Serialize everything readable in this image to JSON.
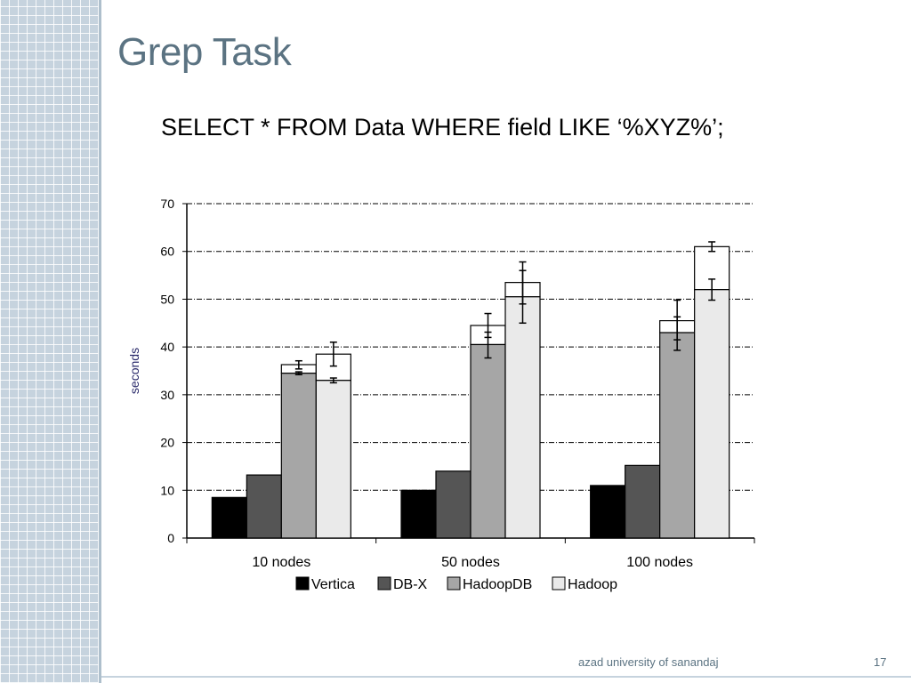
{
  "slide": {
    "title": "Grep Task",
    "query": "SELECT * FROM Data WHERE field LIKE ‘%XYZ%’;",
    "footer": "azad university of sanandaj",
    "page_number": "17"
  },
  "colors": {
    "title": "#5b7382",
    "sidebar": "#c6d3de",
    "Vertica": "#000000",
    "DB-X": "#555555",
    "HadoopDB": "#a6a6a6",
    "Hadoop": "#eaeaea"
  },
  "chart_data": {
    "type": "bar",
    "title": "",
    "xlabel": "",
    "ylabel": "seconds",
    "ylim": [
      0,
      70
    ],
    "yticks": [
      0,
      10,
      20,
      30,
      40,
      50,
      60,
      70
    ],
    "grid": true,
    "legend": "bottom",
    "categories": [
      "10 nodes",
      "50 nodes",
      "100 nodes"
    ],
    "series": [
      {
        "name": "Vertica",
        "values": [
          8.5,
          10,
          11
        ]
      },
      {
        "name": "DB-X",
        "values": [
          13.2,
          14,
          15.2
        ]
      },
      {
        "name": "HadoopDB",
        "values": [
          34.5,
          40.5,
          43
        ],
        "stacked_top": [
          36.3,
          44.5,
          45.5
        ],
        "error_bars": [
          [
            34.2,
            34.8
          ],
          [
            37.7,
            43.1
          ],
          [
            39.3,
            46.3
          ]
        ],
        "top_error_bars": [
          [
            35.4,
            37.1
          ],
          [
            42.0,
            47.0
          ],
          [
            41.5,
            49.8
          ]
        ]
      },
      {
        "name": "Hadoop",
        "values": [
          33,
          50.5,
          52
        ],
        "stacked_top": [
          38.5,
          53.5,
          61
        ],
        "error_bars": [
          [
            32.5,
            33.5
          ],
          [
            45.0,
            56.0
          ],
          [
            49.8,
            54.2
          ]
        ],
        "top_error_bars": [
          [
            36.0,
            41.0
          ],
          [
            49.0,
            57.8
          ],
          [
            60.0,
            62.0
          ]
        ]
      }
    ]
  }
}
